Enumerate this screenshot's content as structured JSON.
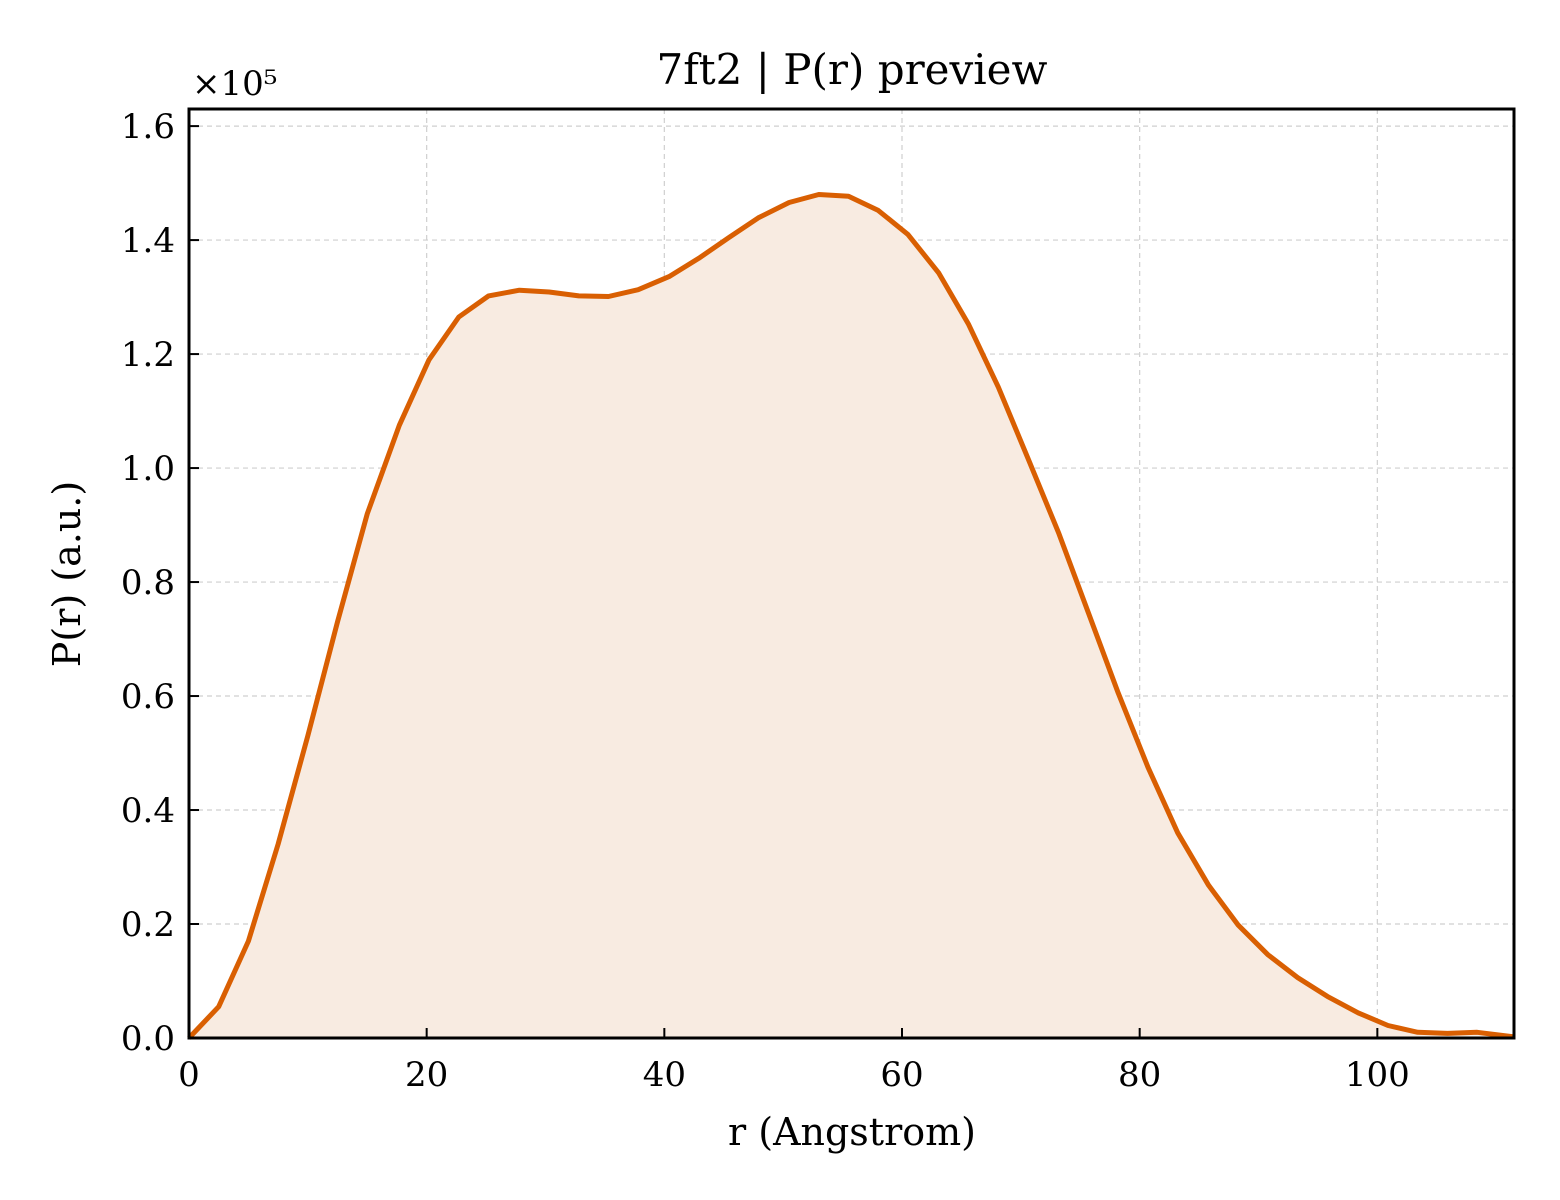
{
  "chart_data": {
    "type": "area",
    "title": "7ft2 | P(r) preview",
    "xlabel": "r (Angstrom)",
    "ylabel": "P(r) (a.u.)",
    "y_offset_label": "×10⁵",
    "xlim": [
      0,
      111.5
    ],
    "ylim": [
      0,
      1.63
    ],
    "xticks": [
      0,
      20,
      40,
      60,
      80,
      100
    ],
    "xtick_labels": [
      "0",
      "20",
      "40",
      "60",
      "80",
      "100"
    ],
    "yticks": [
      0.0,
      0.2,
      0.4,
      0.6,
      0.8,
      1.0,
      1.2,
      1.4,
      1.6
    ],
    "ytick_labels": [
      "0.0",
      "0.2",
      "0.4",
      "0.6",
      "0.8",
      "1.0",
      "1.2",
      "1.4",
      "1.6"
    ],
    "grid": true,
    "line_color": "#d95f02",
    "fill_color": "#f8ebe1",
    "series": [
      {
        "x": [
          0,
          2.5,
          5,
          7.5,
          10,
          12.5,
          15,
          17.7,
          20.2,
          22.7,
          25.2,
          27.8,
          30.3,
          32.8,
          35.3,
          37.8,
          40.4,
          42.9,
          45.4,
          47.9,
          50.5,
          53,
          55.5,
          58,
          60.5,
          63.1,
          65.6,
          68.1,
          70.6,
          73.2,
          75.7,
          78.2,
          80.7,
          83.2,
          85.8,
          88.3,
          90.8,
          93.3,
          95.8,
          98.4,
          100.9,
          103.4,
          105.9,
          108.4,
          111.5
        ],
        "y": [
          0.0,
          0.055,
          0.17,
          0.34,
          0.53,
          0.73,
          0.92,
          1.075,
          1.19,
          1.265,
          1.302,
          1.312,
          1.309,
          1.302,
          1.301,
          1.313,
          1.336,
          1.368,
          1.404,
          1.439,
          1.466,
          1.48,
          1.477,
          1.452,
          1.41,
          1.342,
          1.252,
          1.142,
          1.017,
          0.885,
          0.745,
          0.605,
          0.475,
          0.36,
          0.268,
          0.198,
          0.146,
          0.106,
          0.073,
          0.044,
          0.022,
          0.01,
          0.008,
          0.01,
          0.002
        ]
      }
    ]
  }
}
